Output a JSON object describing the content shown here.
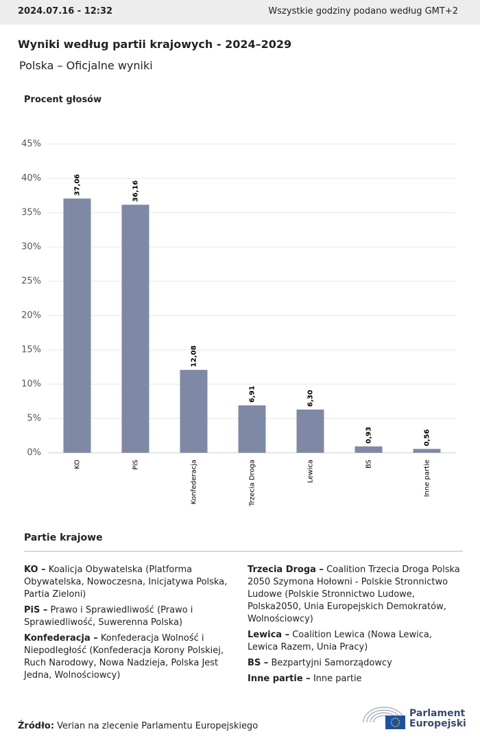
{
  "header": {
    "timestamp": "2024.07.16 - 12:32",
    "timezone_note": "Wszystkie godziny podano według GMT+2"
  },
  "chart_data": {
    "type": "bar",
    "title": "Wyniki według partii krajowych - 2024–2029",
    "subtitle": "Polska – Oficjalne wyniki",
    "y_axis_label": "Procent głosów",
    "categories": [
      "KO",
      "PiS",
      "Konfederacja",
      "Trzecia Droga",
      "Lewica",
      "BS",
      "Inne partie"
    ],
    "values": [
      37.06,
      36.16,
      12.08,
      6.91,
      6.3,
      0.93,
      0.56
    ],
    "value_labels": [
      "37,06",
      "36,16",
      "12,08",
      "6,91",
      "6,30",
      "0,93",
      "0,56"
    ],
    "color": "#7f89a5",
    "ylim": [
      0,
      45
    ],
    "yticks": [
      {
        "value": 0,
        "label": "0%"
      },
      {
        "value": 5,
        "label": "5%"
      },
      {
        "value": 10,
        "label": "10%"
      },
      {
        "value": 15,
        "label": "15%"
      },
      {
        "value": 20,
        "label": "20%"
      },
      {
        "value": 25,
        "label": "25%"
      },
      {
        "value": 30,
        "label": "30%"
      },
      {
        "value": 35,
        "label": "35%"
      },
      {
        "value": 40,
        "label": "40%"
      },
      {
        "value": 45,
        "label": "45%"
      }
    ],
    "grid": true
  },
  "legend": {
    "title": "Partie krajowe",
    "left": [
      {
        "abbr": "KO –",
        "text": "Koalicja Obywatelska (Platforma Obywatelska, Nowoczesna, Inicjatywa Polska, Partia Zieloni)"
      },
      {
        "abbr": "PiS –",
        "text": "Prawo i Sprawiedliwość (Prawo i Sprawiedliwość, Suwerenna Polska)"
      },
      {
        "abbr": "Konfederacja –",
        "text": "Konfederacja Wolność i Niepodległość (Konfederacja Korony Polskiej, Ruch Narodowy, Nowa Nadzieja, Polska Jest Jedna, Wolnościowcy)"
      }
    ],
    "right": [
      {
        "abbr": "Trzecia Droga –",
        "text": "Coalition Trzecia Droga Polska 2050 Szymona Hołowni - Polskie Stronnictwo Ludowe (Polskie Stronnictwo Ludowe, Polska2050, Unia Europejskich Demokratów, Wolnościowcy)"
      },
      {
        "abbr": "Lewica –",
        "text": "Coalition Lewica (Nowa Lewica, Lewica Razem, Unia Pracy)"
      },
      {
        "abbr": "BS –",
        "text": "Bezpartyjni Samorządowcy"
      },
      {
        "abbr": "Inne partie –",
        "text": "Inne partie"
      }
    ]
  },
  "footer": {
    "source_label": "Źródło:",
    "source_text": "Verian na zlecenie Parlamentu Europejskiego"
  },
  "logo": {
    "line1": "Parlament",
    "line2": "Europejski"
  }
}
